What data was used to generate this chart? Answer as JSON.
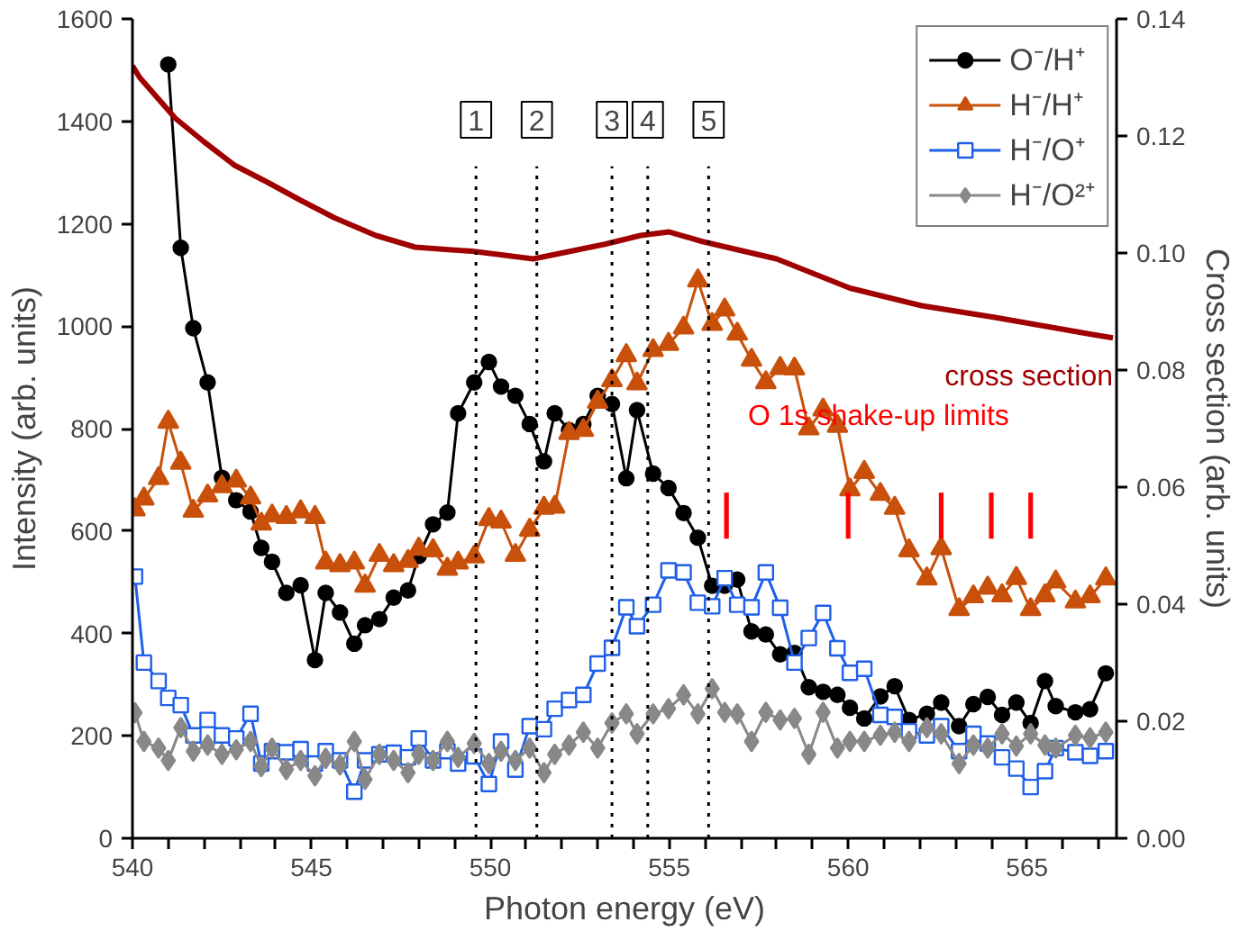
{
  "chart_data": {
    "type": "line",
    "xlabel": "Photon energy (eV)",
    "ylabel": "Intensity (arb. units)",
    "y2label": "Cross section (arb. units)",
    "xlim": [
      540,
      567.5
    ],
    "ylim": [
      0,
      1600
    ],
    "y2lim": [
      0,
      0.14
    ],
    "xticks": [
      540,
      {
        "value": 541,
        "label": null
      },
      {
        "value": 542,
        "label": null
      },
      {
        "value": 543,
        "label": null
      },
      {
        "value": 544,
        "label": null
      },
      545,
      {
        "value": 546,
        "label": null
      },
      {
        "value": 547,
        "label": null
      },
      {
        "value": 548,
        "label": null
      },
      {
        "value": 549,
        "label": null
      },
      550,
      {
        "value": 551,
        "label": null
      },
      {
        "value": 552,
        "label": null
      },
      {
        "value": 553,
        "label": null
      },
      {
        "value": 554,
        "label": null
      },
      555,
      {
        "value": 556,
        "label": null
      },
      {
        "value": 557,
        "label": null
      },
      {
        "value": 558,
        "label": null
      },
      {
        "value": 559,
        "label": null
      },
      560,
      {
        "value": 561,
        "label": null
      },
      {
        "value": 562,
        "label": null
      },
      {
        "value": 563,
        "label": null
      },
      {
        "value": 564,
        "label": null
      },
      565,
      {
        "value": 566,
        "label": null
      },
      {
        "value": 567,
        "label": null
      }
    ],
    "yticks": [
      0,
      200,
      400,
      600,
      800,
      1000,
      1200,
      1400,
      1600
    ],
    "y2ticks": [
      {
        "value": 0,
        "label": "0.00"
      },
      {
        "value": 0.02,
        "label": "0.02"
      },
      {
        "value": 0.04,
        "label": "0.04"
      },
      {
        "value": 0.06,
        "label": "0.06"
      },
      {
        "value": 0.08,
        "label": "0.08"
      },
      {
        "value": 0.1,
        "label": "0.10"
      },
      {
        "value": 0.12,
        "label": "0.12"
      },
      {
        "value": 0.14,
        "label": "0.14"
      }
    ],
    "legend": "top right",
    "line_style": "solid",
    "x": [
      540.07,
      540.32,
      540.73,
      541.0,
      541.35,
      541.7,
      542.1,
      542.5,
      542.9,
      543.3,
      543.6,
      543.9,
      544.3,
      544.7,
      545.1,
      545.4,
      545.8,
      546.2,
      546.5,
      546.9,
      547.3,
      547.7,
      548.0,
      548.4,
      548.8,
      549.1,
      549.55,
      549.96,
      550.3,
      550.7,
      551.1,
      551.5,
      551.8,
      552.2,
      552.6,
      553.0,
      553.4,
      553.8,
      554.1,
      554.55,
      554.98,
      555.4,
      555.8,
      556.2,
      556.55,
      556.9,
      557.3,
      557.7,
      558.1,
      558.5,
      558.9,
      559.3,
      559.7,
      560.05,
      560.45,
      560.9,
      561.3,
      561.7,
      562.2,
      562.6,
      563.1,
      563.5,
      563.9,
      564.3,
      564.7,
      565.1,
      565.5,
      565.8,
      566.35,
      566.76,
      567.2
    ],
    "series": [
      {
        "name": "O⁻/H⁺",
        "color": "#000000",
        "marker": "circle",
        "values": [
          null,
          null,
          null,
          1511,
          1153,
          996,
          890,
          704,
          660,
          638,
          567,
          540,
          479,
          494,
          348,
          479,
          441,
          380,
          416,
          428,
          470,
          484,
          551,
          613,
          636,
          830,
          890,
          930,
          882,
          864,
          809,
          736,
          830,
          797,
          809,
          864,
          848,
          703,
          836,
          712,
          684,
          635,
          587,
          493,
          493,
          505,
          404,
          398,
          359,
          362,
          295,
          286,
          280,
          255,
          234,
          277,
          297,
          231,
          243,
          265,
          219,
          262,
          276,
          241,
          265,
          225,
          307,
          258,
          246,
          252,
          322
        ]
      },
      {
        "name": "H⁻/H⁺",
        "color": "#c8500a",
        "marker": "triangle",
        "values": [
          642,
          663,
          703,
          813,
          733,
          639,
          669,
          687,
          698,
          665,
          614,
          630,
          627,
          638,
          627,
          538,
          533,
          538,
          493,
          553,
          533,
          541,
          565,
          562,
          526,
          538,
          550,
          623,
          618,
          553,
          602,
          645,
          647,
          791,
          797,
          852,
          894,
          943,
          888,
          953,
          965,
          997,
          1089,
          1004,
          1032,
          985,
          934,
          890,
          918,
          917,
          800,
          837,
          805,
          681,
          715,
          672,
          645,
          562,
          507,
          566,
          447,
          472,
          489,
          474,
          508,
          447,
          474,
          501,
          462,
          472,
          507
        ]
      },
      {
        "name": "H⁻/O⁺",
        "color": "#1f5fe8",
        "marker": "square",
        "values": [
          511,
          343,
          307,
          274,
          260,
          201,
          231,
          201,
          195,
          243,
          146,
          170,
          168,
          174,
          146,
          170,
          152,
          91,
          152,
          164,
          167,
          158,
          195,
          152,
          170,
          146,
          160,
          106,
          189,
          134,
          219,
          213,
          253,
          270,
          280,
          341,
          372,
          451,
          414,
          456,
          523,
          519,
          460,
          453,
          508,
          456,
          451,
          519,
          450,
          343,
          391,
          440,
          371,
          323,
          331,
          241,
          237,
          209,
          201,
          219,
          170,
          204,
          185,
          158,
          136,
          100,
          131,
          176,
          168,
          161,
          170
        ]
      },
      {
        "name": "H⁻/O²⁺",
        "color": "#888888",
        "marker": "diamond",
        "values": [
          245,
          189,
          176,
          152,
          216,
          170,
          182,
          164,
          173,
          189,
          140,
          176,
          134,
          152,
          122,
          156,
          143,
          189,
          115,
          164,
          152,
          128,
          164,
          152,
          189,
          158,
          185,
          146,
          170,
          152,
          176,
          128,
          164,
          182,
          207,
          176,
          225,
          243,
          204,
          243,
          253,
          280,
          243,
          292,
          246,
          243,
          189,
          246,
          231,
          234,
          164,
          246,
          176,
          189,
          189,
          201,
          207,
          189,
          216,
          204,
          146,
          182,
          176,
          204,
          180,
          204,
          182,
          176,
          201,
          196,
          207
        ]
      },
      {
        "name": "cross section",
        "color": "#a00000",
        "axis": "y2",
        "marker": "none",
        "x": [
          540.0,
          540.2,
          541.2,
          542.0,
          542.85,
          543.8,
          544.7,
          545.65,
          546.8,
          547.9,
          549.0,
          549.5,
          551.2,
          553.2,
          554.2,
          555.0,
          555.9,
          558.0,
          560.05,
          562.05,
          564.1,
          566.9,
          567.4
        ],
        "values": [
          0.132,
          0.13,
          0.123,
          0.119,
          0.115,
          0.112,
          0.109,
          0.106,
          0.103,
          0.101,
          0.1005,
          0.1003,
          0.099,
          0.1015,
          0.103,
          0.1036,
          0.102,
          0.099,
          0.094,
          0.091,
          0.089,
          0.086,
          0.0855
        ]
      },
      {
        "type": "bar",
        "name": "O 1s shake-up limits",
        "color": "#ff0000",
        "x": [
          556.6,
          560.0,
          562.6,
          564.0,
          565.1
        ],
        "base": [
          585,
          585,
          585,
          585,
          585
        ],
        "values": [
          90,
          90,
          90,
          90,
          90
        ]
      }
    ],
    "ref_lines": [
      {
        "axis": "x",
        "value": 549.6,
        "line_style": "dotted",
        "color": "#000000"
      },
      {
        "axis": "x",
        "value": 551.3,
        "line_style": "dotted",
        "color": "#000000"
      },
      {
        "axis": "x",
        "value": 553.4,
        "line_style": "dotted",
        "color": "#000000"
      },
      {
        "axis": "x",
        "value": 554.4,
        "line_style": "dotted",
        "color": "#000000"
      },
      {
        "axis": "x",
        "value": 556.1,
        "line_style": "dotted",
        "color": "#000000"
      }
    ],
    "annotations": [
      "1",
      "2",
      "3",
      "4",
      "5"
    ]
  }
}
